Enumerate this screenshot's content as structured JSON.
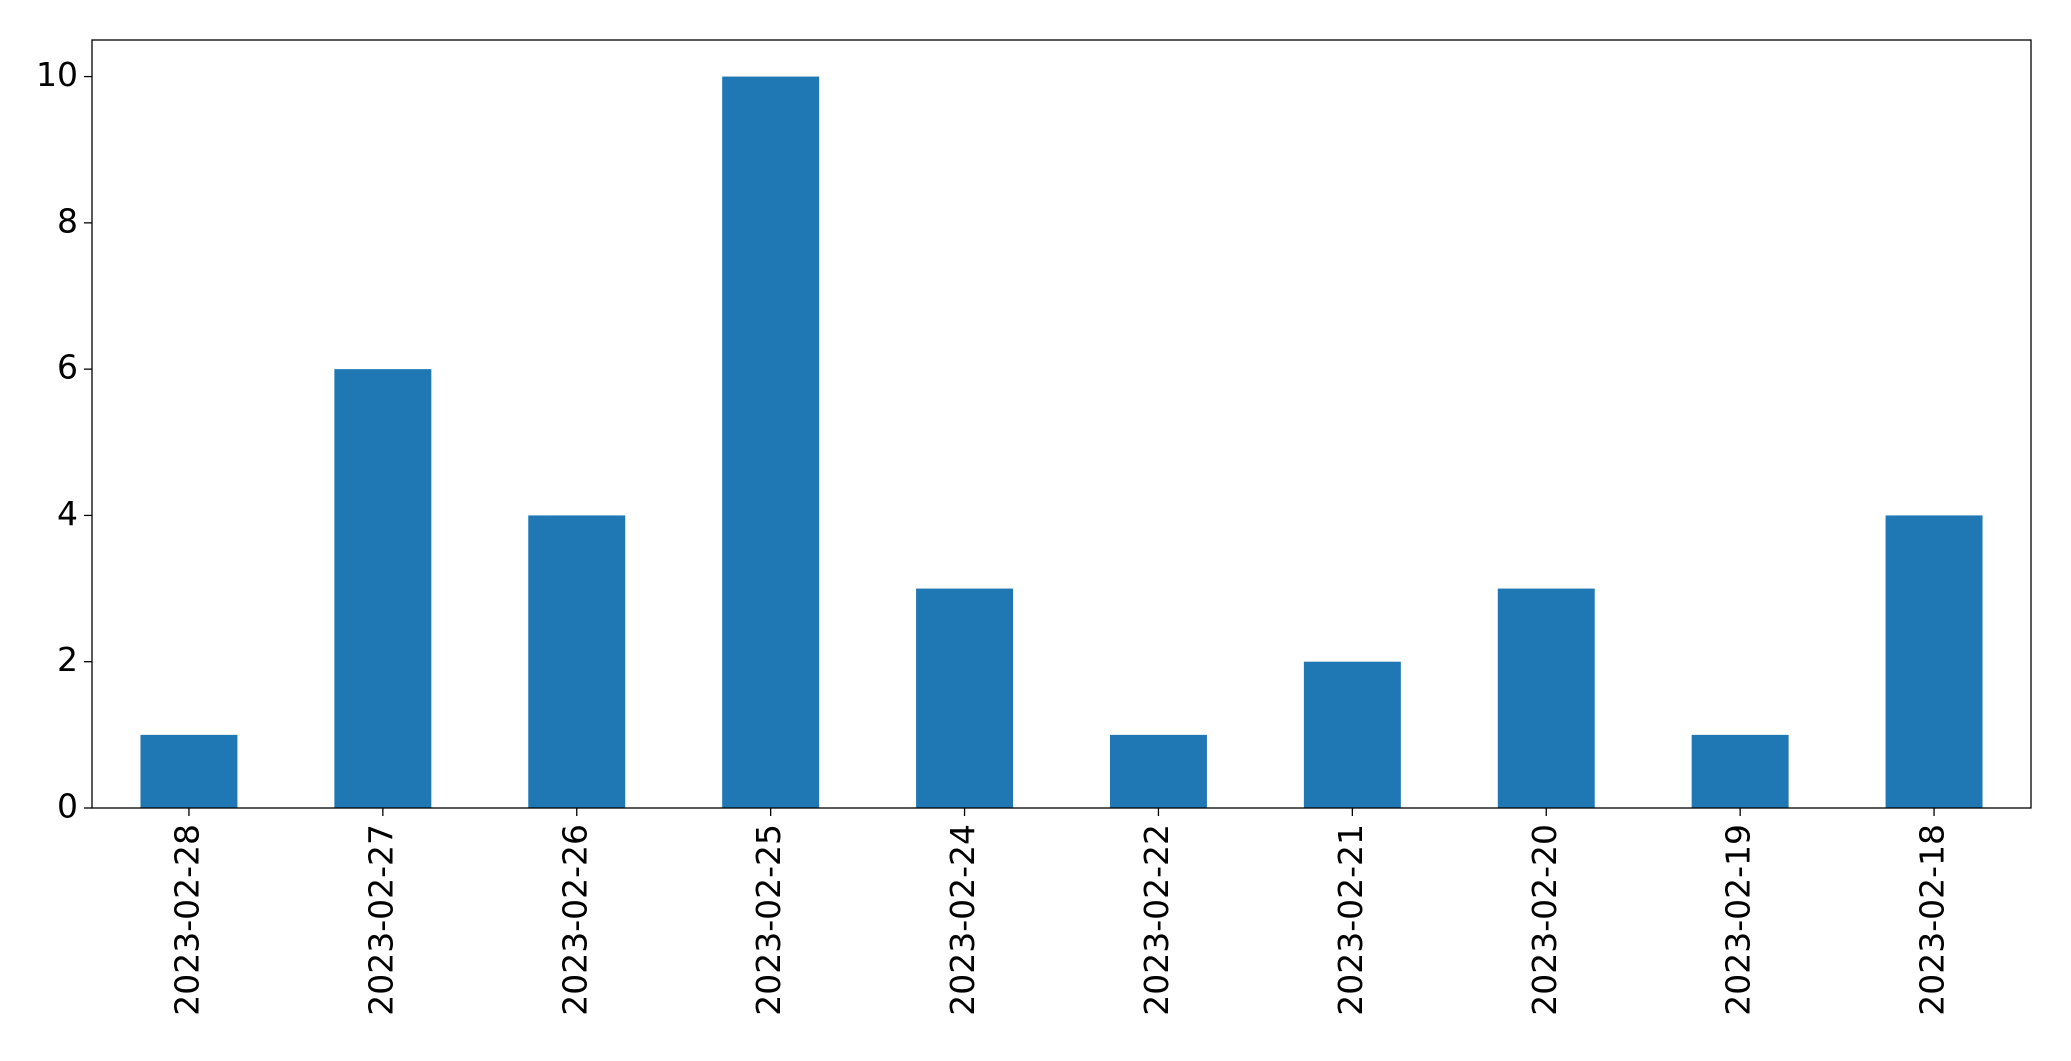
{
  "chart_data": {
    "type": "bar",
    "categories": [
      "2023-02-28",
      "2023-02-27",
      "2023-02-26",
      "2023-02-25",
      "2023-02-24",
      "2023-02-22",
      "2023-02-21",
      "2023-02-20",
      "2023-02-19",
      "2023-02-18"
    ],
    "values": [
      1,
      6,
      4,
      10,
      3,
      1,
      2,
      3,
      1,
      4
    ],
    "color": "#1f77b4",
    "ylim": [
      0,
      10.5
    ],
    "yticks": [
      0,
      2,
      4,
      6,
      8,
      10
    ],
    "grid": false
  }
}
